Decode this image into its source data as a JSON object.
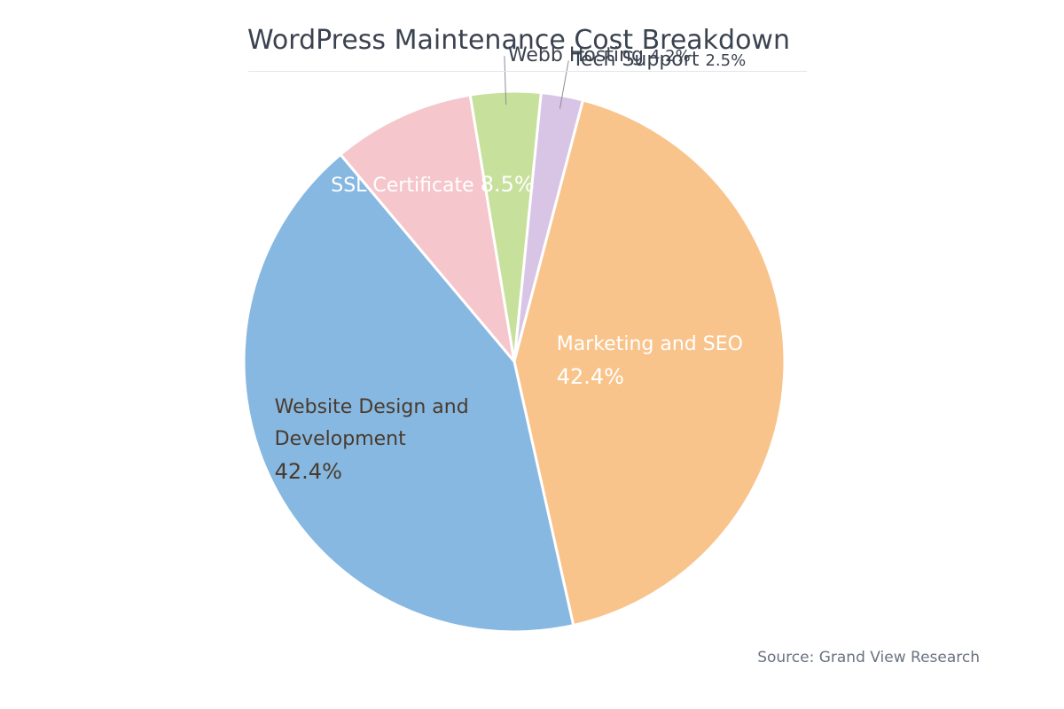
{
  "chart_data": {
    "type": "pie",
    "title": "WordPress Maintenance Cost Breakdown",
    "categories": [
      "SSL Certificate",
      "Webb Hosting",
      "Tech Support",
      "Marketing and SEO",
      "Website Design and Development"
    ],
    "values": [
      8.5,
      4.2,
      2.5,
      42.4,
      42.4
    ],
    "value_labels": [
      "8.5%",
      "4.2%",
      "2.5%",
      "42.4%",
      "42.4%"
    ],
    "colors": [
      "#f5c6cb",
      "#c7e09c",
      "#d8c4e4",
      "#f9c48c",
      "#86b8e1"
    ],
    "source": "Source: Grand View Research"
  }
}
